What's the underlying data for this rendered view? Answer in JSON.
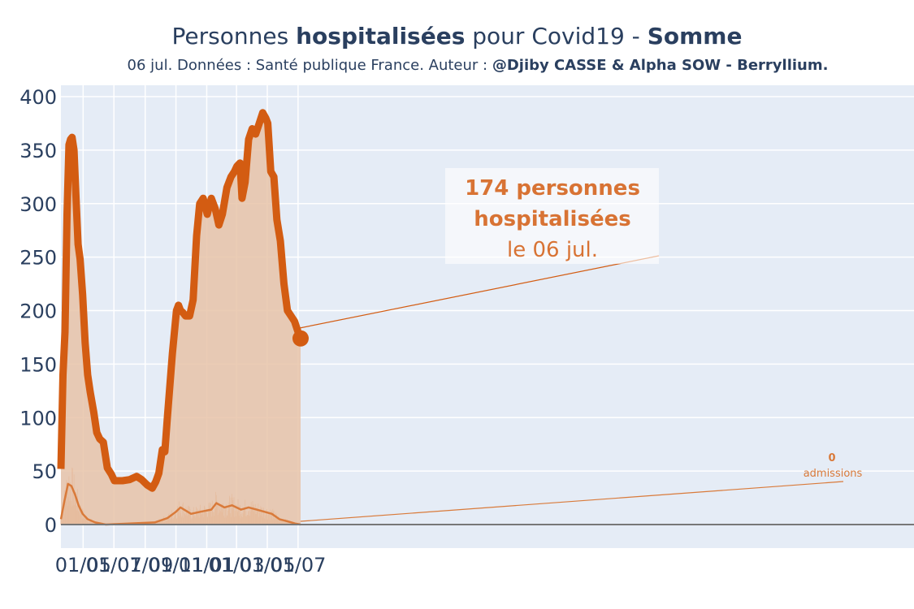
{
  "title": {
    "prefix": "Personnes ",
    "bold1": "hospitalisées",
    "middle": " pour Covid19 - ",
    "bold2": "Somme"
  },
  "subtitle": {
    "prefix": "06 jul. Données : Santé publique France. Auteur : ",
    "bold": "@Djiby CASSE & Alpha SOW - Berryllium."
  },
  "annotation_main": {
    "line1": "174 personnes",
    "line2": "hospitalisées",
    "line3": "le 06 jul."
  },
  "annotation_admissions": {
    "value": "0",
    "label": "admissions"
  },
  "colors": {
    "line": "#d35c12",
    "fill": "#e8c3a8",
    "plot_bg": "#e5ecf6",
    "grid": "#ffffff",
    "text": "#2a3f5f"
  },
  "chart_data": {
    "type": "area",
    "title": "Personnes hospitalisées pour Covid19 - Somme",
    "xlabel": "",
    "ylabel": "",
    "ylim": [
      0,
      400
    ],
    "yticks": [
      0,
      50,
      100,
      150,
      200,
      250,
      300,
      350,
      400
    ],
    "xticks": [
      "01/05",
      "01/07",
      "01/09",
      "01/11",
      "01/01",
      "01/03",
      "01/05",
      "01/07"
    ],
    "x_range": [
      "2020-03-18",
      "2021-07-06"
    ],
    "grid": true,
    "series": [
      {
        "kind": "area-line",
        "x": [
          "2020-03-18",
          "2020-03-22",
          "2020-03-26",
          "2020-03-30",
          "2020-04-03",
          "2020-04-06",
          "2020-04-09",
          "2020-04-13",
          "2020-04-17",
          "2020-04-21",
          "2020-04-25",
          "2020-04-30",
          "2020-05-05",
          "2020-05-10",
          "2020-05-15",
          "2020-05-22",
          "2020-05-28",
          "2020-06-03",
          "2020-06-10",
          "2020-06-18",
          "2020-06-26",
          "2020-07-02",
          "2020-07-06",
          "2020-07-12",
          "2020-07-18",
          "2020-08-01",
          "2020-08-15",
          "2020-08-25",
          "2020-09-05",
          "2020-09-15",
          "2020-09-22",
          "2020-09-28",
          "2020-10-05",
          "2020-10-10",
          "2020-10-15",
          "2020-10-25",
          "2020-11-02",
          "2020-11-06",
          "2020-11-10",
          "2020-11-15",
          "2020-11-20",
          "2020-11-28",
          "2020-12-05",
          "2020-12-12",
          "2020-12-18",
          "2020-12-25",
          "2021-01-02",
          "2021-01-10",
          "2021-01-18",
          "2021-01-25",
          "2021-02-01",
          "2021-02-10",
          "2021-02-18",
          "2021-02-25",
          "2021-03-02",
          "2021-03-08",
          "2021-03-12",
          "2021-03-18",
          "2021-03-25",
          "2021-04-01",
          "2021-04-08",
          "2021-04-15",
          "2021-04-22",
          "2021-04-28",
          "2021-05-02",
          "2021-05-08",
          "2021-05-14",
          "2021-05-20",
          "2021-05-27",
          "2021-06-03",
          "2021-06-10",
          "2021-06-17",
          "2021-06-24",
          "2021-07-01",
          "2021-07-06"
        ],
        "values": [
          52,
          140,
          180,
          290,
          355,
          360,
          362,
          350,
          305,
          262,
          248,
          215,
          170,
          140,
          124,
          105,
          86,
          80,
          77,
          53,
          47,
          41,
          41,
          41,
          41,
          42,
          45,
          42,
          37,
          34,
          40,
          48,
          70,
          68,
          100,
          160,
          200,
          205,
          200,
          198,
          195,
          195,
          210,
          270,
          300,
          305,
          290,
          305,
          295,
          280,
          290,
          315,
          325,
          330,
          335,
          338,
          305,
          320,
          360,
          370,
          365,
          375,
          385,
          380,
          375,
          330,
          325,
          285,
          265,
          225,
          200,
          195,
          190,
          180,
          174
        ]
      },
      {
        "kind": "daily-admissions-7d-avg",
        "x": [
          "2020-03-18",
          "2020-03-25",
          "2020-04-01",
          "2020-04-08",
          "2020-04-15",
          "2020-04-22",
          "2020-04-30",
          "2020-05-10",
          "2020-05-25",
          "2020-06-15",
          "2020-09-20",
          "2020-10-15",
          "2020-11-01",
          "2020-11-10",
          "2020-12-01",
          "2020-12-20",
          "2021-01-10",
          "2021-01-20",
          "2021-02-05",
          "2021-02-20",
          "2021-03-10",
          "2021-03-25",
          "2021-04-10",
          "2021-04-25",
          "2021-05-10",
          "2021-05-25",
          "2021-06-10",
          "2021-06-25",
          "2021-07-06"
        ],
        "values": [
          5,
          22,
          38,
          36,
          28,
          18,
          10,
          5,
          2,
          0,
          2,
          6,
          12,
          16,
          10,
          12,
          14,
          20,
          16,
          18,
          14,
          16,
          14,
          12,
          10,
          5,
          3,
          1,
          0
        ]
      },
      {
        "kind": "daily-admissions-bars",
        "max": 60,
        "note": "thin daily bars, peaks around 50-60 in April 2020"
      }
    ],
    "last_point": {
      "x": "2021-07-06",
      "value": 174
    },
    "last_admissions": 0
  }
}
